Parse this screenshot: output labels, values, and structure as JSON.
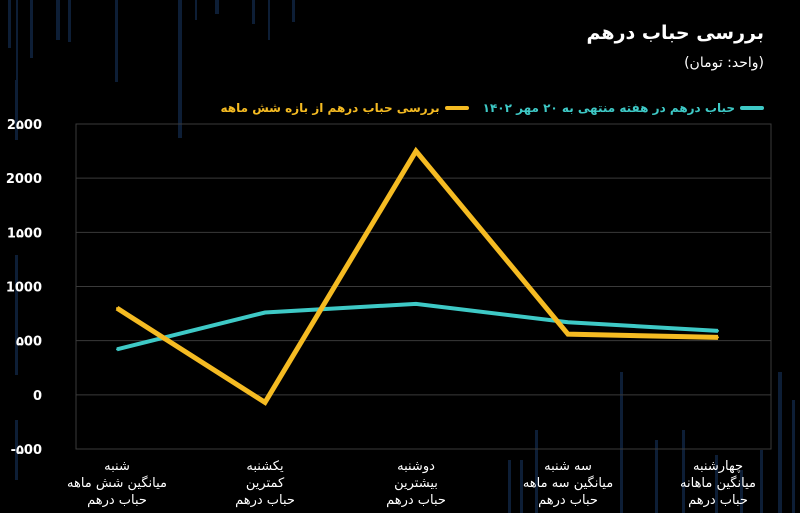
{
  "header": {
    "title": "بررسی حباب درهم",
    "subtitle": "(واحد: تومان)"
  },
  "colors": {
    "background": "#000000",
    "grid": "#3a3a3a",
    "text": "#ffffff",
    "series_teal": "#3ec9c6",
    "series_gold": "#f5bb22",
    "decor": "#0d1e36"
  },
  "chart_data": {
    "type": "line",
    "categories": [
      [
        "شنبه",
        "میانگین شش ماهه",
        "حباب درهم"
      ],
      [
        "یکشنبه",
        "کمترین",
        "حباب درهم"
      ],
      [
        "دوشنبه",
        "بیشترین",
        "حباب درهم"
      ],
      [
        "سه شنبه",
        "میانگین سه ماهه",
        "حباب درهم"
      ],
      [
        "چهارشنبه",
        "میانگین ماهانه",
        "حباب درهم"
      ]
    ],
    "y_tick_labels": [
      "-۵00",
      "0",
      "۵00",
      "1000",
      "1۵00",
      "2000",
      "2۵00"
    ],
    "ylim": [
      -500,
      2500
    ],
    "grid": true,
    "legend_position": "top-right",
    "series": [
      {
        "name": "حباب درهم در هفته منتهی  به ۲۰ مهر ۱۴۰۲",
        "color": "#3ec9c6",
        "values": [
          420,
          760,
          840,
          670,
          590
        ]
      },
      {
        "name": "بررسی حباب درهم از بازه شش ماهه",
        "color": "#f5bb22",
        "values": [
          800,
          -70,
          2250,
          560,
          530
        ]
      }
    ]
  }
}
